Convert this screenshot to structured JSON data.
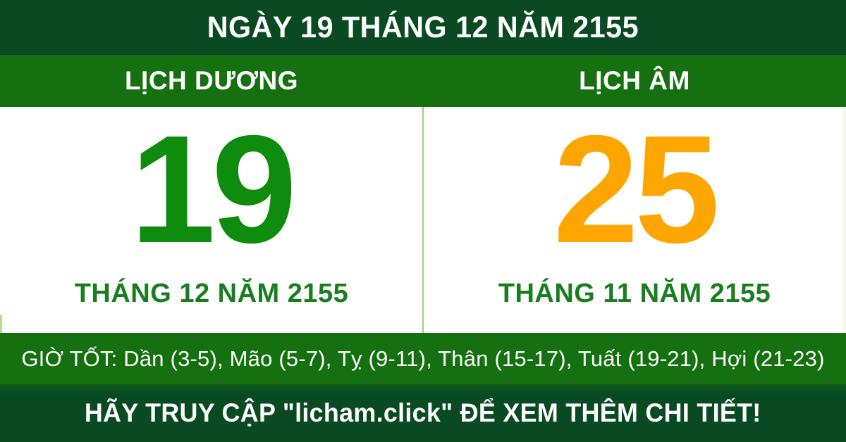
{
  "header": {
    "title": "NGÀY 19 THÁNG 12 NĂM 2155"
  },
  "calendars": {
    "solar": {
      "label": "LỊCH DƯƠNG",
      "day": "19",
      "month_year": "THÁNG 12 NĂM 2155"
    },
    "lunar": {
      "label": "LỊCH ÂM",
      "day": "25",
      "month_year": "THÁNG 11 NĂM 2155"
    }
  },
  "good_hours": {
    "text": "GIỜ TỐT: Dần (3-5), Mão (5-7), Tỵ (9-11), Thân (15-17), Tuất (19-21), Hợi (21-23)"
  },
  "footer": {
    "text": "HÃY TRUY CẬP \"licham.click\" ĐỂ XEM THÊM CHI TIẾT!"
  },
  "colors": {
    "dark_green": "#0a4a22",
    "bright_green": "#15700f",
    "solar_day_green": "#0e8c0e",
    "lunar_day_orange": "#ffa500",
    "month_label_green": "#1a7d1f",
    "divider_light_green": "#9bd076",
    "text_white": "#ffffff"
  }
}
